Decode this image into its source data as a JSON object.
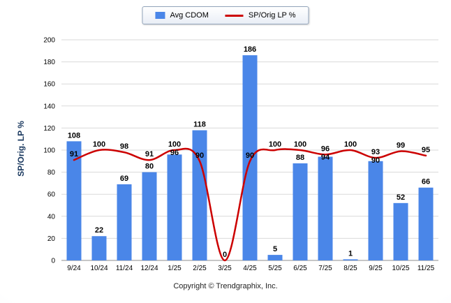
{
  "chart_data": {
    "type": "combo",
    "categories": [
      "9/24",
      "10/24",
      "11/24",
      "12/24",
      "1/25",
      "2/25",
      "3/25",
      "4/25",
      "5/25",
      "6/25",
      "7/25",
      "8/25",
      "9/25",
      "10/25",
      "11/25"
    ],
    "series": [
      {
        "name": "Avg CDOM",
        "type": "bar",
        "color": "#4a86e8",
        "values": [
          108,
          22,
          69,
          80,
          96,
          118,
          0,
          186,
          5,
          88,
          94,
          1,
          90,
          52,
          66
        ]
      },
      {
        "name": "SP/Orig LP %",
        "type": "line",
        "color": "#cc0000",
        "values": [
          91,
          100,
          98,
          91,
          100,
          90,
          0,
          90,
          100,
          100,
          96,
          100,
          93,
          99,
          95
        ]
      }
    ],
    "title": "",
    "xlabel": "",
    "ylabel": "SP/Orig. LP %",
    "ylim": [
      0,
      200
    ],
    "ytick_step": 20,
    "grid": true,
    "legend_position": "top-center"
  },
  "footer": {
    "copyright": "Copyright © Trendgraphix, Inc."
  },
  "colors": {
    "bar": "#4a86e8",
    "line": "#cc0000",
    "ylabel_text": "#17365d",
    "grid": "#d9d9d9",
    "axis": "#8c8c8c",
    "label_text": "#000000"
  }
}
